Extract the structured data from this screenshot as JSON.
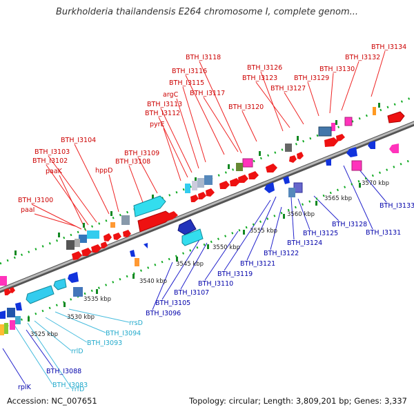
{
  "title": "Burkholderia thailandensis E264 chromosome I, complete genom...",
  "footer": {
    "accession": "Accession: NC_007651",
    "topology": "Topology: circular; Length: 3,809,201 bp; Genes: 3,337"
  },
  "colors": {
    "forward_gene": "#ee1111",
    "reverse_gene": "#1111cc",
    "rna_gene": "#33ccee",
    "forward_label": "#cc0000",
    "reverse_label": "#0000aa",
    "rna_label": "#22aacc",
    "ruler_tick": "#11aa22",
    "backbone": "#888888"
  },
  "kbp_ticks": [
    "3525 kbp",
    "3530 kbp",
    "3535 kbp",
    "3540 kbp",
    "3545 kbp",
    "3550 kbp",
    "3555 kbp",
    "3560 kbp",
    "3565 kbp",
    "3570 kbp"
  ],
  "forward_labels": [
    "BTH_I3134",
    "BTH_I3132",
    "BTH_I3130",
    "BTH_I3118",
    "BTH_I3126",
    "BTH_I3116",
    "BTH_I3123",
    "BTH_I3129",
    "BTH_I3115",
    "BTH_I3127",
    "argC",
    "BTH_I3117",
    "BTH_I3113",
    "BTH_I3120",
    "BTH_I3112",
    "pyrE",
    "BTH_I3104",
    "BTH_I3109",
    "BTH_I3103",
    "BTH_I3108",
    "BTH_I3102",
    "hppD",
    "paaK",
    "BTH_I3100",
    "paaI"
  ],
  "reverse_labels": [
    "BTH_I3133",
    "BTH_I3128",
    "BTH_I3131",
    "BTH_I3125",
    "BTH_I3124",
    "BTH_I3122",
    "BTH_I3121",
    "BTH_I3119",
    "BTH_I3110",
    "BTH_I3107",
    "BTH_I3105",
    "BTH_I3096",
    "BTH_I3088",
    "rplK"
  ],
  "rna_labels": [
    "rrsD",
    "BTH_I3094",
    "BTH_I3093",
    "rrlD",
    "BTH_I3083",
    "rrfD"
  ]
}
